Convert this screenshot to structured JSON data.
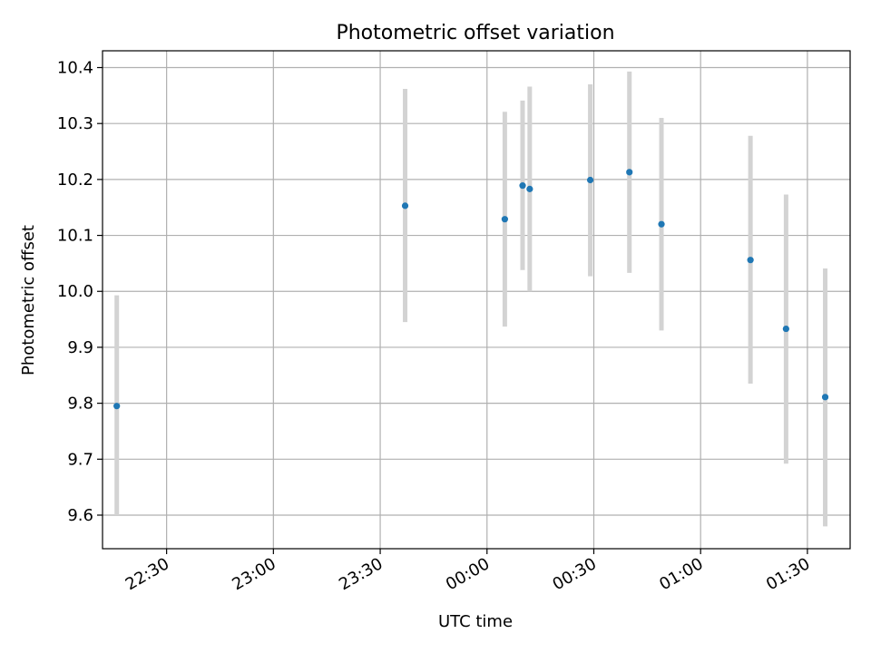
{
  "chart_data": {
    "type": "scatter",
    "title": "Photometric offset variation",
    "xlabel": "UTC time",
    "ylabel": "Photometric offset",
    "grid": true,
    "x_axis_kind": "time",
    "x_ticks": [
      "22:30",
      "23:00",
      "23:30",
      "00:00",
      "00:30",
      "01:00",
      "01:30"
    ],
    "y_ticks": [
      "9.6",
      "9.7",
      "9.8",
      "9.9",
      "10.0",
      "10.1",
      "10.2",
      "10.3",
      "10.4"
    ],
    "xlim": [
      "22:12",
      "01:42"
    ],
    "ylim": [
      9.54,
      10.43
    ],
    "colors": {
      "point": "#1f77b4",
      "errorbar": "#d3d3d3",
      "grid": "#b0b0b0"
    },
    "points": [
      {
        "x": "22:16",
        "y": 9.795,
        "ylow": 9.6,
        "yhigh": 9.993
      },
      {
        "x": "23:37",
        "y": 10.153,
        "ylow": 9.945,
        "yhigh": 10.362
      },
      {
        "x": "00:05",
        "y": 10.129,
        "ylow": 9.937,
        "yhigh": 10.321
      },
      {
        "x": "00:10",
        "y": 10.189,
        "ylow": 10.038,
        "yhigh": 10.341
      },
      {
        "x": "00:12",
        "y": 10.183,
        "ylow": 10.0,
        "yhigh": 10.366
      },
      {
        "x": "00:29",
        "y": 10.199,
        "ylow": 10.027,
        "yhigh": 10.37
      },
      {
        "x": "00:40",
        "y": 10.213,
        "ylow": 10.033,
        "yhigh": 10.393
      },
      {
        "x": "00:49",
        "y": 10.12,
        "ylow": 9.93,
        "yhigh": 10.31
      },
      {
        "x": "01:14",
        "y": 10.056,
        "ylow": 9.835,
        "yhigh": 10.278
      },
      {
        "x": "01:24",
        "y": 9.933,
        "ylow": 9.692,
        "yhigh": 10.173
      },
      {
        "x": "01:35",
        "y": 9.811,
        "ylow": 9.58,
        "yhigh": 10.041
      }
    ]
  }
}
